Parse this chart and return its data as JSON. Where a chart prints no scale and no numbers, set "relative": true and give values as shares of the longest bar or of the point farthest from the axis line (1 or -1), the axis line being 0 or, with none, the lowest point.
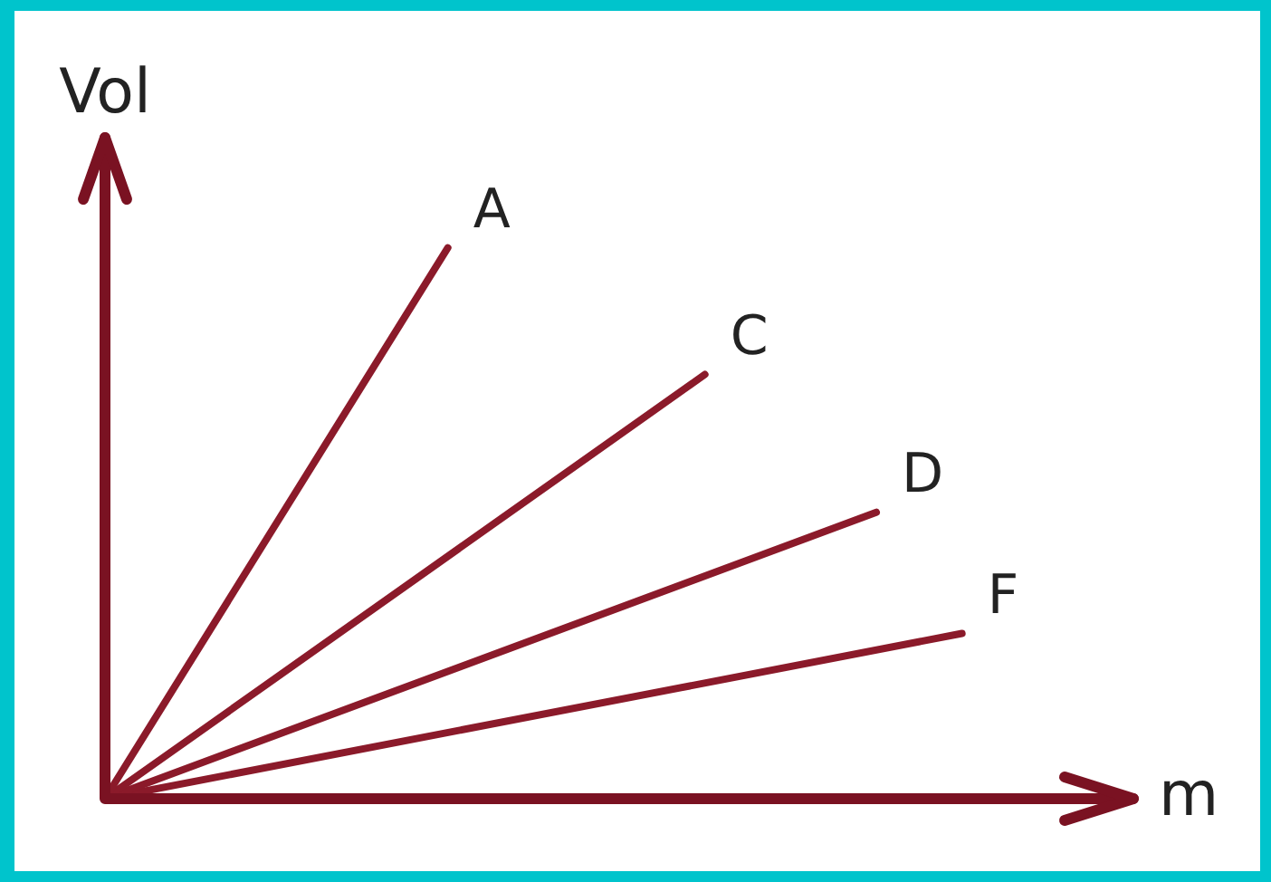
{
  "chart_data": {
    "type": "line",
    "relative": true,
    "xlabel": "m",
    "ylabel": "Vol",
    "marker": "none",
    "legend": false,
    "categories": [
      null,
      null,
      null,
      null,
      null,
      null,
      null,
      null,
      null,
      null,
      null,
      null,
      null
    ],
    "series": [
      {
        "name": "A",
        "color": "#8b1a2a",
        "values": [
          0,
          null,
          null,
          null,
          1,
          null,
          null,
          null,
          null,
          null,
          null,
          null,
          null
        ]
      },
      {
        "name": "C",
        "color": "#8b1a2a",
        "values": [
          0,
          null,
          null,
          null,
          null,
          null,
          null,
          0.77,
          null,
          null,
          null,
          null,
          null
        ]
      },
      {
        "name": "D",
        "color": "#8b1a2a",
        "values": [
          0,
          null,
          null,
          null,
          null,
          null,
          null,
          null,
          null,
          0.52,
          null,
          null,
          null
        ]
      },
      {
        "name": "F",
        "color": "#8b1a2a",
        "values": [
          0,
          null,
          null,
          null,
          null,
          null,
          null,
          null,
          null,
          null,
          0.3,
          null,
          null
        ]
      }
    ]
  }
}
